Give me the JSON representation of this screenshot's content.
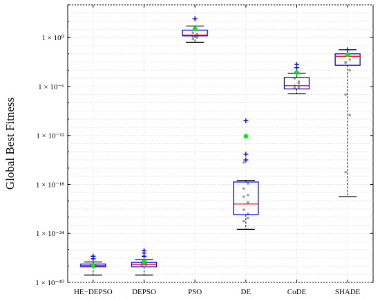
{
  "chart_data": {
    "type": "box",
    "ylabel": "Global Best Fitness",
    "xlabel": "",
    "yscale": "log",
    "ylim_exp": [
      -30,
      4
    ],
    "yticks": [
      {
        "exp": 0,
        "label": "1 × 10⁰"
      },
      {
        "exp": -6,
        "label": "1 × 10⁻⁶"
      },
      {
        "exp": -12,
        "label": "1 × 10⁻¹²"
      },
      {
        "exp": -18,
        "label": "1 × 10⁻¹⁸"
      },
      {
        "exp": -24,
        "label": "1 × 10⁻²⁴"
      },
      {
        "exp": -30,
        "label": "1 × 10⁻³⁰"
      }
    ],
    "grid": true,
    "colors": {
      "box": "#0000ff",
      "median": "#ff0000",
      "whisker": "#000000",
      "outlier": "#0000ff",
      "mean": "#00ee00",
      "point": "#999999"
    },
    "categories": [
      "HE−DEPSO",
      "DEPSO",
      "PSO",
      "DE",
      "CoDE",
      "SHADE"
    ],
    "boxes": [
      {
        "name": "HE−DEPSO",
        "whislo": -29.1,
        "q1": -28.1,
        "median": -27.95,
        "q3": -27.75,
        "whishi": -27.5,
        "mean": -27.9,
        "fliers": [
          -27.1,
          -26.8
        ],
        "points": [
          -28.0,
          -27.9,
          -27.85,
          -28.05,
          -27.95
        ]
      },
      {
        "name": "DEPSO",
        "whislo": -29.1,
        "q1": -28.1,
        "median": -27.8,
        "q3": -27.55,
        "whishi": -27.2,
        "mean": -27.45,
        "fliers": [
          -26.8,
          -26.4,
          -26.1
        ],
        "points": [
          -27.9,
          -27.7,
          -27.6,
          -27.85
        ]
      },
      {
        "name": "PSO",
        "whislo": -0.6,
        "q1": 0.2,
        "median": 0.3,
        "q3": 0.9,
        "whishi": 1.4,
        "mean": 1.05,
        "fliers": [
          2.3
        ],
        "points": [
          0.1,
          0.0,
          -0.2,
          0.4,
          0.6,
          0.2
        ]
      },
      {
        "name": "DE",
        "whislo": -23.5,
        "q1": -21.7,
        "median": -20.4,
        "q3": -17.7,
        "whishi": -17.5,
        "mean": -12.1,
        "fliers": [
          -10.2,
          -14.3,
          -15.0
        ],
        "points": [
          -15.3,
          -17.9,
          -18.5,
          -19.3,
          -19.5,
          -20.2,
          -21.1,
          -21.6,
          -22.5,
          -22.1
        ]
      },
      {
        "name": "CoDE",
        "whislo": -6.9,
        "q1": -6.3,
        "median": -5.9,
        "q3": -4.9,
        "whishi": -4.4,
        "mean": -4.3,
        "fliers": [
          -3.3,
          -3.7,
          -4.3
        ],
        "points": [
          -5.0,
          -5.6,
          -5.9,
          -6.1,
          -6.2,
          -5.4
        ]
      },
      {
        "name": "SHADE",
        "whislo": -19.5,
        "q1": -3.4,
        "median": -2.3,
        "q3": -2.0,
        "whishi": -1.5,
        "mean": -2.1,
        "fliers": [
          -1.5
        ],
        "points": [
          -3.0,
          -4.0,
          -7.0,
          -9.5,
          -16.5,
          -2.7,
          -3.1
        ]
      }
    ]
  }
}
